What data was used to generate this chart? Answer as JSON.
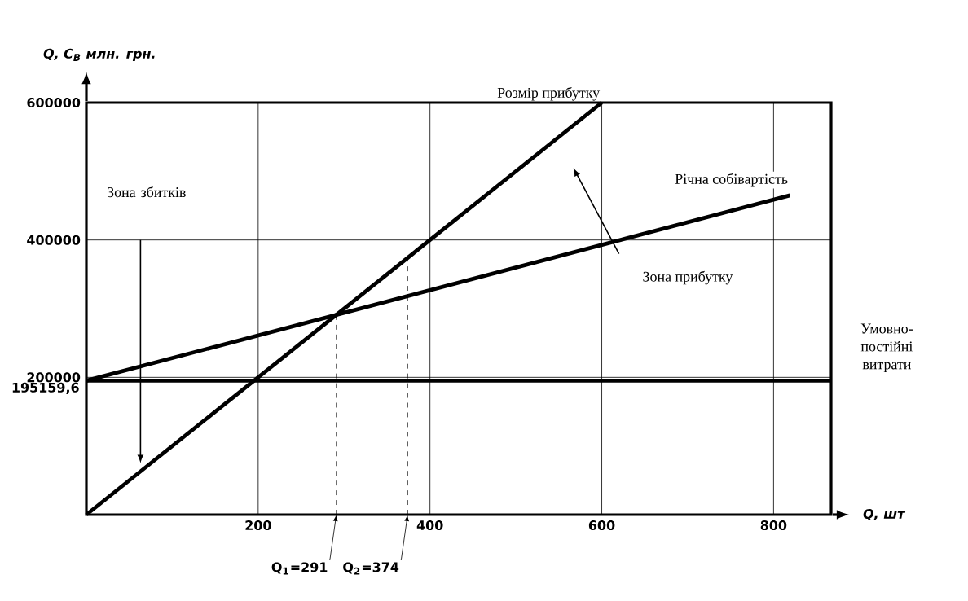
{
  "chart_data": {
    "type": "line",
    "ylabel": "Q, C$_{В}$  млн. грн.",
    "xlabel": "Q, шт",
    "series": [
      {
        "name": "Розмір прибутку",
        "color": "#000000",
        "x": [
          0,
          600
        ],
        "values": [
          0,
          600000
        ]
      },
      {
        "name": "Річна собівартість",
        "color": "#000000",
        "x": [
          0,
          819
        ],
        "values": [
          195159.6,
          465000
        ]
      },
      {
        "name": "Умовно-постійні витрати",
        "color": "#000000",
        "x": [
          0,
          867
        ],
        "values": [
          195159.6,
          195159.6
        ],
        "value_labels": [
          "195159,6",
          null
        ]
      }
    ],
    "xlim": [
      0,
      867
    ],
    "ylim": [
      0,
      600000
    ],
    "xticks": [
      200,
      400,
      600,
      800
    ],
    "yticks": [
      200000,
      400000,
      600000
    ],
    "grid": true,
    "marker": "none",
    "line_style": "solid",
    "ref_lines": [
      {
        "axis": "x",
        "value": 291,
        "label": "Q$_{1}$=291",
        "line_style": "dashed"
      },
      {
        "axis": "x",
        "value": 374,
        "label": "Q$_{2}$=374",
        "line_style": "dashed"
      }
    ],
    "annotations": [
      "Зона збитків",
      "Зона  прибутку"
    ]
  }
}
